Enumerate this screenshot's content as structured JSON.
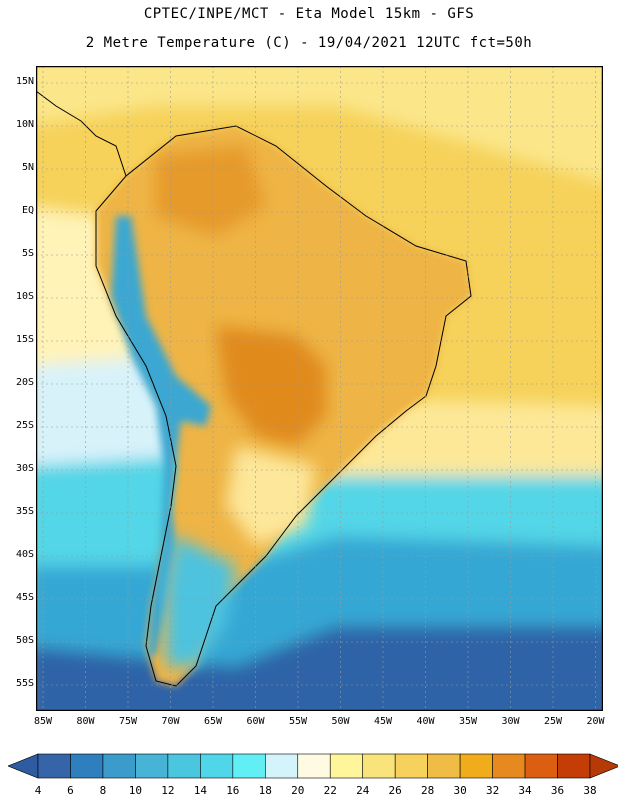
{
  "title": {
    "line1": "CPTEC/INPE/MCT -  Eta Model 15km - GFS",
    "line2": "2 Metre Temperature (C) - 19/04/2021 12UTC fct=50h"
  },
  "axes": {
    "lon_labels": [
      "85W",
      "80W",
      "75W",
      "70W",
      "65W",
      "60W",
      "55W",
      "50W",
      "45W",
      "40W",
      "35W",
      "30W",
      "25W",
      "20W"
    ],
    "lat_labels": [
      "15N",
      "10N",
      "5N",
      "EQ",
      "5S",
      "10S",
      "15S",
      "20S",
      "25S",
      "30S",
      "35S",
      "40S",
      "45S",
      "50S",
      "55S"
    ]
  },
  "colorbar": {
    "ticks": [
      "4",
      "6",
      "8",
      "10",
      "12",
      "14",
      "16",
      "18",
      "20",
      "22",
      "24",
      "26",
      "28",
      "30",
      "32",
      "34",
      "36",
      "38"
    ],
    "colors": [
      "#3565a8",
      "#2f7fbf",
      "#3b9ccc",
      "#47b4d7",
      "#4bc6df",
      "#4fd6e8",
      "#62eef5",
      "#d4f4fb",
      "#fffbe3",
      "#fff59a",
      "#f8e47a",
      "#f6d15c",
      "#efbd45",
      "#f0ac1b",
      "#e68a1f",
      "#dc5e10",
      "#c43d06"
    ]
  },
  "map": {
    "fields": {
      "ocean_north": "#f6d25a",
      "caribbean": "#fbe68a",
      "south_atlantic_mid": "#fff3a6",
      "pacific_mid": "#d8f2fa",
      "cool_band": "#52d6e7",
      "cold_band": "#2f8fc6",
      "far_south": "#2e64a8",
      "land_warm": "#eeb444",
      "land_hot": "#e08a1e",
      "andes": "#3ba7d2",
      "patagonia": "#4ec3df"
    }
  }
}
